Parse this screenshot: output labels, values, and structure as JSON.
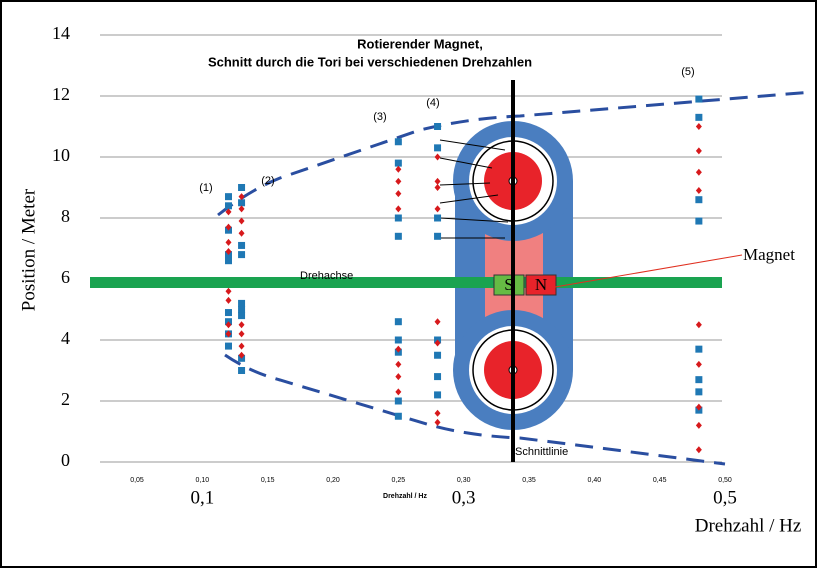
{
  "chart_data": {
    "type": "scatter",
    "title": "Rotierender Magnet,",
    "subtitle": "Schnitt durch die Tori bei verschiedenen Drehzahlen",
    "y_label": "Position / Meter",
    "x_label": "Drehzahl / Hz",
    "x_label_small": "Drehzahl / Hz",
    "xlim": [
      0,
      0.5
    ],
    "ylim": [
      0,
      14
    ],
    "yticks": [
      0,
      2,
      4,
      6,
      8,
      10,
      12,
      14
    ],
    "xticks": [
      {
        "value": 0.05,
        "label": "0,05"
      },
      {
        "value": 0.1,
        "label": "0,10"
      },
      {
        "value": 0.15,
        "label": "0,15"
      },
      {
        "value": 0.2,
        "label": "0,20"
      },
      {
        "value": 0.25,
        "label": "0,25"
      },
      {
        "value": 0.3,
        "label": "0,30"
      },
      {
        "value": 0.35,
        "label": "0,35"
      },
      {
        "value": 0.4,
        "label": "0,40"
      },
      {
        "value": 0.45,
        "label": "0,45"
      },
      {
        "value": 0.5,
        "label": "0,50"
      }
    ],
    "xticks_large": [
      {
        "value": 0.1,
        "label": "0,1"
      },
      {
        "value": 0.3,
        "label": "0,3"
      },
      {
        "value": 0.5,
        "label": "0,5"
      }
    ],
    "grid": true,
    "series": [
      {
        "color": "#1f78b4",
        "marker": "square",
        "x": [
          0.12,
          0.12,
          0.12,
          0.12,
          0.12,
          0.12,
          0.12,
          0.12,
          0.12,
          0.13,
          0.13,
          0.13,
          0.13,
          0.13,
          0.13,
          0.13,
          0.13,
          0.13,
          0.25,
          0.25,
          0.25,
          0.25,
          0.25,
          0.25,
          0.25,
          0.25,
          0.25,
          0.28,
          0.28,
          0.28,
          0.28,
          0.28,
          0.28,
          0.28,
          0.28,
          0.48,
          0.48,
          0.48,
          0.48,
          0.48,
          0.48,
          0.48,
          0.48
        ],
        "values": [
          8.7,
          8.4,
          7.6,
          6.8,
          6.6,
          4.9,
          4.6,
          4.2,
          3.8,
          9.0,
          8.5,
          7.1,
          6.8,
          5.2,
          5.0,
          4.8,
          3.4,
          3.0,
          10.5,
          9.8,
          8.0,
          7.4,
          4.6,
          4.0,
          3.6,
          2.0,
          1.5,
          11.0,
          10.3,
          8.0,
          7.4,
          4.0,
          3.5,
          2.8,
          2.2,
          11.9,
          11.3,
          8.6,
          7.9,
          3.7,
          2.7,
          2.3,
          1.7
        ]
      },
      {
        "color": "#d7191c",
        "marker": "diamond",
        "x": [
          0.12,
          0.12,
          0.12,
          0.12,
          0.12,
          0.12,
          0.12,
          0.12,
          0.13,
          0.13,
          0.13,
          0.13,
          0.13,
          0.13,
          0.13,
          0.13,
          0.25,
          0.25,
          0.25,
          0.25,
          0.25,
          0.25,
          0.25,
          0.25,
          0.28,
          0.28,
          0.28,
          0.28,
          0.28,
          0.28,
          0.28,
          0.28,
          0.48,
          0.48,
          0.48,
          0.48,
          0.48,
          0.48,
          0.48,
          0.48,
          0.48
        ],
        "values": [
          8.2,
          7.7,
          7.2,
          6.9,
          5.6,
          5.3,
          4.5,
          4.2,
          8.7,
          8.3,
          7.9,
          7.5,
          4.5,
          4.2,
          3.8,
          3.5,
          9.6,
          9.2,
          8.8,
          8.3,
          3.7,
          3.2,
          2.8,
          2.3,
          10.0,
          9.2,
          9.0,
          8.3,
          4.6,
          3.9,
          1.6,
          1.3,
          11.0,
          10.2,
          9.5,
          8.9,
          4.5,
          3.2,
          1.8,
          1.2,
          0.4
        ]
      }
    ],
    "annotations": [
      "(1)",
      "(2)",
      "(3)",
      "(4)",
      "(5)"
    ],
    "axis_label": "Drehachse",
    "cut_label": "Schnittlinie",
    "magnet_label": "Magnet",
    "pole_s": "S",
    "pole_n": "N"
  }
}
